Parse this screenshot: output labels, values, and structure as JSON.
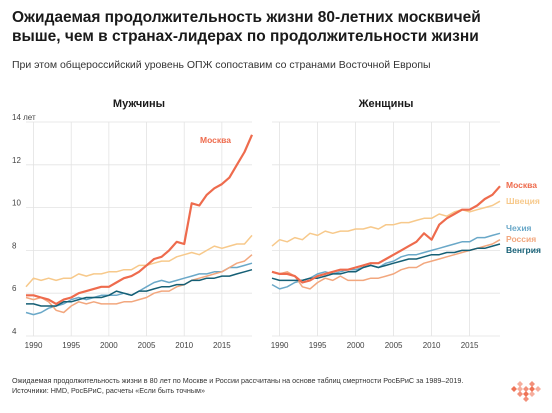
{
  "header": {
    "title_line1": "Ожидаемая продолжительность жизни 80-летних москвичей",
    "title_line2": "выше, чем в странах-лидерах по продолжительности жизни",
    "subtitle": "При этом общероссийский уровень ОПЖ сопоставим со странами Восточной Европы"
  },
  "footer": {
    "note": "Ожидаемая продолжительность жизни в 80 лет по Москве и России рассчитаны на основе таблиц смертности РосБРиС за 1989–2019.",
    "sources": "Источники: HMD, РосБРиС, расчеты «Если быть точным»"
  },
  "colors": {
    "moscow": "#ee6b4d",
    "sweden": "#f7c98b",
    "czech": "#6aa8c8",
    "russia": "#f2a77e",
    "hungary": "#155f75",
    "grid": "#e3e3e3",
    "logo": "#ee6b4d"
  },
  "chart_data": [
    {
      "type": "line",
      "title": "Мужчины",
      "xlim": [
        1989,
        2019
      ],
      "ylim": [
        4,
        14
      ],
      "x_ticks": [
        1990,
        1995,
        2000,
        2005,
        2010,
        2015
      ],
      "y_ticks": [
        4,
        6,
        8,
        10,
        12,
        14
      ],
      "y_tick_labels": [
        "4",
        "6",
        "8",
        "10",
        "12",
        "14 лет"
      ],
      "grid": true,
      "series": [
        {
          "key": "sweden",
          "label": "",
          "x": [
            1989,
            1990,
            1991,
            1992,
            1993,
            1994,
            1995,
            1996,
            1997,
            1998,
            1999,
            2000,
            2001,
            2002,
            2003,
            2004,
            2005,
            2006,
            2007,
            2008,
            2009,
            2010,
            2011,
            2012,
            2013,
            2014,
            2015,
            2016,
            2017,
            2018,
            2019
          ],
          "y": [
            6.3,
            6.7,
            6.6,
            6.7,
            6.6,
            6.7,
            6.7,
            6.9,
            6.8,
            6.9,
            6.9,
            7.0,
            7.0,
            7.1,
            7.1,
            7.3,
            7.3,
            7.4,
            7.5,
            7.5,
            7.7,
            7.8,
            7.9,
            7.8,
            8.0,
            8.2,
            8.1,
            8.2,
            8.3,
            8.3,
            8.7
          ]
        },
        {
          "key": "czech",
          "label": "",
          "x": [
            1989,
            1990,
            1991,
            1992,
            1993,
            1994,
            1995,
            1996,
            1997,
            1998,
            1999,
            2000,
            2001,
            2002,
            2003,
            2004,
            2005,
            2006,
            2007,
            2008,
            2009,
            2010,
            2011,
            2012,
            2013,
            2014,
            2015,
            2016,
            2017,
            2018,
            2019
          ],
          "y": [
            5.1,
            5.0,
            5.1,
            5.3,
            5.4,
            5.5,
            5.7,
            5.8,
            5.7,
            5.8,
            5.9,
            5.9,
            5.9,
            6.0,
            5.9,
            6.1,
            6.3,
            6.5,
            6.6,
            6.5,
            6.6,
            6.7,
            6.8,
            6.9,
            6.9,
            7.0,
            7.0,
            7.2,
            7.2,
            7.3,
            7.4
          ]
        },
        {
          "key": "russia",
          "label": "",
          "x": [
            1989,
            1990,
            1991,
            1992,
            1993,
            1994,
            1995,
            1996,
            1997,
            1998,
            1999,
            2000,
            2001,
            2002,
            2003,
            2004,
            2005,
            2006,
            2007,
            2008,
            2009,
            2010,
            2011,
            2012,
            2013,
            2014,
            2015,
            2016,
            2017,
            2018,
            2019
          ],
          "y": [
            5.8,
            5.7,
            5.8,
            5.6,
            5.2,
            5.1,
            5.4,
            5.6,
            5.5,
            5.6,
            5.5,
            5.5,
            5.5,
            5.6,
            5.6,
            5.7,
            5.8,
            6.0,
            6.1,
            6.1,
            6.3,
            6.4,
            6.6,
            6.7,
            6.8,
            6.9,
            7.0,
            7.2,
            7.4,
            7.5,
            7.8
          ]
        },
        {
          "key": "hungary",
          "label": "",
          "x": [
            1989,
            1990,
            1991,
            1992,
            1993,
            1994,
            1995,
            1996,
            1997,
            1998,
            1999,
            2000,
            2001,
            2002,
            2003,
            2004,
            2005,
            2006,
            2007,
            2008,
            2009,
            2010,
            2011,
            2012,
            2013,
            2014,
            2015,
            2016,
            2017,
            2018,
            2019
          ],
          "y": [
            5.5,
            5.5,
            5.4,
            5.4,
            5.4,
            5.6,
            5.6,
            5.7,
            5.8,
            5.8,
            5.8,
            5.9,
            6.1,
            6.0,
            5.9,
            6.1,
            6.1,
            6.2,
            6.3,
            6.3,
            6.4,
            6.4,
            6.6,
            6.6,
            6.7,
            6.7,
            6.8,
            6.8,
            6.9,
            7.0,
            7.1
          ]
        },
        {
          "key": "moscow",
          "label": "Москва",
          "x": [
            1989,
            1990,
            1991,
            1992,
            1993,
            1994,
            1995,
            1996,
            1997,
            1998,
            1999,
            2000,
            2001,
            2002,
            2003,
            2004,
            2005,
            2006,
            2007,
            2008,
            2009,
            2010,
            2011,
            2012,
            2013,
            2014,
            2015,
            2016,
            2017,
            2018,
            2019
          ],
          "y": [
            5.9,
            5.9,
            5.8,
            5.7,
            5.5,
            5.7,
            5.8,
            6.0,
            6.1,
            6.2,
            6.3,
            6.3,
            6.5,
            6.7,
            6.8,
            7.0,
            7.3,
            7.6,
            7.7,
            8.0,
            8.4,
            8.3,
            10.2,
            10.1,
            10.6,
            10.9,
            11.1,
            11.4,
            12.0,
            12.6,
            13.4
          ]
        }
      ]
    },
    {
      "type": "line",
      "title": "Женщины",
      "xlim": [
        1989,
        2019
      ],
      "ylim": [
        4,
        14
      ],
      "x_ticks": [
        1990,
        1995,
        2000,
        2005,
        2010,
        2015
      ],
      "grid": true,
      "series": [
        {
          "key": "sweden",
          "label": "Швеция",
          "x": [
            1989,
            1990,
            1991,
            1992,
            1993,
            1994,
            1995,
            1996,
            1997,
            1998,
            1999,
            2000,
            2001,
            2002,
            2003,
            2004,
            2005,
            2006,
            2007,
            2008,
            2009,
            2010,
            2011,
            2012,
            2013,
            2014,
            2015,
            2016,
            2017,
            2018,
            2019
          ],
          "y": [
            8.2,
            8.5,
            8.4,
            8.6,
            8.5,
            8.8,
            8.7,
            8.9,
            8.8,
            8.9,
            8.9,
            9.0,
            9.0,
            9.1,
            9.0,
            9.2,
            9.2,
            9.3,
            9.3,
            9.4,
            9.5,
            9.5,
            9.7,
            9.6,
            9.8,
            9.9,
            9.8,
            9.9,
            10.0,
            10.1,
            10.3
          ]
        },
        {
          "key": "czech",
          "label": "Чехия",
          "x": [
            1989,
            1990,
            1991,
            1992,
            1993,
            1994,
            1995,
            1996,
            1997,
            1998,
            1999,
            2000,
            2001,
            2002,
            2003,
            2004,
            2005,
            2006,
            2007,
            2008,
            2009,
            2010,
            2011,
            2012,
            2013,
            2014,
            2015,
            2016,
            2017,
            2018,
            2019
          ],
          "y": [
            6.4,
            6.2,
            6.3,
            6.5,
            6.6,
            6.7,
            6.9,
            7.0,
            6.9,
            7.0,
            7.1,
            7.1,
            7.2,
            7.3,
            7.2,
            7.4,
            7.5,
            7.7,
            7.8,
            7.8,
            7.9,
            8.0,
            8.1,
            8.2,
            8.3,
            8.4,
            8.4,
            8.6,
            8.6,
            8.7,
            8.8
          ]
        },
        {
          "key": "russia",
          "label": "Россия",
          "x": [
            1989,
            1990,
            1991,
            1992,
            1993,
            1994,
            1995,
            1996,
            1997,
            1998,
            1999,
            2000,
            2001,
            2002,
            2003,
            2004,
            2005,
            2006,
            2007,
            2008,
            2009,
            2010,
            2011,
            2012,
            2013,
            2014,
            2015,
            2016,
            2017,
            2018,
            2019
          ],
          "y": [
            7.0,
            6.9,
            7.0,
            6.8,
            6.3,
            6.2,
            6.5,
            6.7,
            6.6,
            6.8,
            6.6,
            6.6,
            6.6,
            6.7,
            6.7,
            6.8,
            6.9,
            7.1,
            7.2,
            7.2,
            7.4,
            7.5,
            7.6,
            7.7,
            7.8,
            7.9,
            8.0,
            8.1,
            8.2,
            8.3,
            8.5
          ]
        },
        {
          "key": "hungary",
          "label": "Венгрия",
          "x": [
            1989,
            1990,
            1991,
            1992,
            1993,
            1994,
            1995,
            1996,
            1997,
            1998,
            1999,
            2000,
            2001,
            2002,
            2003,
            2004,
            2005,
            2006,
            2007,
            2008,
            2009,
            2010,
            2011,
            2012,
            2013,
            2014,
            2015,
            2016,
            2017,
            2018,
            2019
          ],
          "y": [
            6.7,
            6.6,
            6.6,
            6.6,
            6.6,
            6.7,
            6.7,
            6.8,
            6.9,
            6.9,
            7.0,
            7.0,
            7.2,
            7.3,
            7.2,
            7.3,
            7.4,
            7.5,
            7.6,
            7.6,
            7.7,
            7.8,
            7.8,
            7.9,
            7.9,
            8.0,
            8.0,
            8.1,
            8.1,
            8.2,
            8.3
          ]
        },
        {
          "key": "moscow",
          "label": "Москва",
          "x": [
            1989,
            1990,
            1991,
            1992,
            1993,
            1994,
            1995,
            1996,
            1997,
            1998,
            1999,
            2000,
            2001,
            2002,
            2003,
            2004,
            2005,
            2006,
            2007,
            2008,
            2009,
            2010,
            2011,
            2012,
            2013,
            2014,
            2015,
            2016,
            2017,
            2018,
            2019
          ],
          "y": [
            7.0,
            6.9,
            6.9,
            6.8,
            6.5,
            6.6,
            6.8,
            6.9,
            7.0,
            7.1,
            7.1,
            7.2,
            7.3,
            7.4,
            7.4,
            7.6,
            7.8,
            8.0,
            8.2,
            8.4,
            8.8,
            8.5,
            9.2,
            9.5,
            9.7,
            9.9,
            9.9,
            10.1,
            10.4,
            10.6,
            11.0
          ]
        }
      ]
    }
  ]
}
